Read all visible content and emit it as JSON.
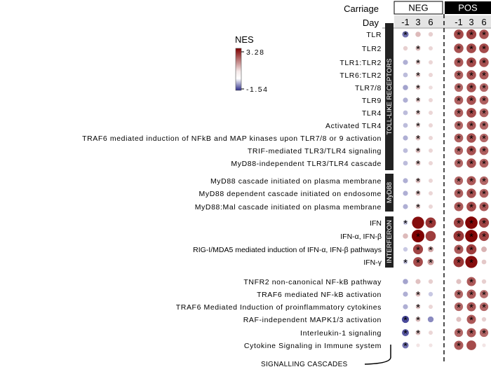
{
  "chart_data": {
    "type": "dot-heatmap",
    "title": "",
    "header": {
      "carriage_label": "Carriage",
      "day_label": "Day",
      "groups": [
        {
          "name": "NEG",
          "days": [
            "-1",
            "3",
            "6"
          ]
        },
        {
          "name": "POS",
          "days": [
            "-1",
            "3",
            "6"
          ]
        }
      ]
    },
    "legend": {
      "title": "NES",
      "max": "3.28",
      "min": "-1.54",
      "max_value": 3.28,
      "min_value": -1.54,
      "colors": {
        "high": "#7f0000",
        "mid": "#ffffff",
        "low": "#2d2d8a"
      },
      "placement": "top-left"
    },
    "sections": [
      {
        "label": "TOLL-LIKE RECEPTORS",
        "rows": [
          {
            "name": "TLR",
            "nes": [
              -1.0,
              0.6,
              0.3,
              2.2,
              2.3,
              2.1
            ],
            "sig": [
              1,
              0,
              0,
              1,
              1,
              1
            ]
          },
          {
            "name": "TLR2",
            "nes": [
              0.3,
              0.5,
              0.2,
              2.1,
              2.2,
              2.2
            ],
            "sig": [
              0,
              1,
              0,
              1,
              1,
              1
            ]
          },
          {
            "name": "TLR1:TLR2",
            "nes": [
              -0.5,
              0.4,
              0.2,
              2.0,
              2.2,
              2.1
            ],
            "sig": [
              0,
              1,
              0,
              1,
              1,
              1
            ]
          },
          {
            "name": "TLR6:TLR2",
            "nes": [
              -0.4,
              0.4,
              0.2,
              1.9,
              2.1,
              2.0
            ],
            "sig": [
              0,
              1,
              0,
              1,
              1,
              1
            ]
          },
          {
            "name": "TLR7/8",
            "nes": [
              -0.6,
              0.4,
              0.1,
              1.8,
              2.1,
              1.8
            ],
            "sig": [
              0,
              1,
              0,
              1,
              1,
              1
            ]
          },
          {
            "name": "TLR9",
            "nes": [
              -0.5,
              0.4,
              0.2,
              1.9,
              2.1,
              1.9
            ],
            "sig": [
              0,
              1,
              0,
              1,
              1,
              1
            ]
          },
          {
            "name": "TLR4",
            "nes": [
              -0.4,
              0.4,
              0.2,
              1.9,
              2.2,
              1.9
            ],
            "sig": [
              0,
              1,
              0,
              1,
              1,
              1
            ]
          },
          {
            "name": "Activated TLR4",
            "nes": [
              -0.4,
              0.3,
              0.2,
              1.8,
              2.0,
              1.8
            ],
            "sig": [
              0,
              1,
              0,
              1,
              1,
              1
            ]
          },
          {
            "name": "TRAF6 mediated induction of NFkB and MAP kinases upon TLR7/8 or 9 activation",
            "nes": [
              -0.5,
              0.5,
              0.2,
              1.9,
              2.1,
              1.8
            ],
            "sig": [
              0,
              1,
              0,
              1,
              1,
              1
            ]
          },
          {
            "name": "TRIF-mediated TLR3/TLR4 signaling",
            "nes": [
              -0.4,
              0.5,
              0.2,
              1.8,
              2.1,
              1.9
            ],
            "sig": [
              0,
              1,
              0,
              1,
              1,
              1
            ]
          },
          {
            "name": "MyD88-independent TLR3/TLR4 cascade",
            "nes": [
              -0.4,
              0.5,
              0.2,
              1.8,
              2.1,
              1.9
            ],
            "sig": [
              0,
              1,
              0,
              1,
              1,
              1
            ]
          }
        ]
      },
      {
        "label": "MyD88",
        "rows": [
          {
            "name": "MyD88 cascade initiated on plasma membrane",
            "nes": [
              -0.5,
              0.5,
              0.2,
              1.8,
              2.0,
              1.8
            ],
            "sig": [
              0,
              1,
              0,
              1,
              1,
              1
            ]
          },
          {
            "name": "MyD88 dependent cascade initiated on endosome",
            "nes": [
              -0.5,
              0.5,
              0.2,
              1.9,
              2.1,
              1.9
            ],
            "sig": [
              0,
              1,
              0,
              1,
              1,
              1
            ]
          },
          {
            "name": "MyD88:Mal cascade initiated on plasma membrane",
            "nes": [
              -0.5,
              0.4,
              0.2,
              2.0,
              2.2,
              2.0
            ],
            "sig": [
              0,
              1,
              0,
              1,
              1,
              1
            ]
          }
        ]
      },
      {
        "label": "INTERFERON",
        "rows": [
          {
            "name": "IFN",
            "nes": [
              -0.3,
              3.1,
              2.5,
              2.3,
              3.2,
              2.3
            ],
            "sig": [
              1,
              0,
              1,
              1,
              1,
              1
            ]
          },
          {
            "name": "IFN-α, IFN-β",
            "nes": [
              0.6,
              3.28,
              2.4,
              2.5,
              3.2,
              2.3
            ],
            "sig": [
              0,
              1,
              0,
              1,
              1,
              1
            ]
          },
          {
            "name": "RIG-I/MDA5 mediated induction of IFN-α, IFN-β pathways",
            "nes": [
              -0.3,
              2.3,
              0.8,
              2.0,
              2.4,
              0.7
            ],
            "sig": [
              0,
              1,
              1,
              1,
              1,
              0
            ]
          },
          {
            "name": "IFN-γ",
            "nes": [
              -0.3,
              2.2,
              1.0,
              2.5,
              3.1,
              0.4
            ],
            "sig": [
              1,
              1,
              1,
              1,
              1,
              0
            ]
          }
        ]
      },
      {
        "label": "SIGNALLING CASCADES",
        "rows": [
          {
            "name": "TNFR2 non-canonical NF-kB pathway",
            "nes": [
              -0.6,
              0.5,
              0.3,
              0.5,
              2.0,
              0.3
            ],
            "sig": [
              0,
              0,
              0,
              0,
              1,
              0
            ]
          },
          {
            "name": "TRAF6 mediated NF-kB activation",
            "nes": [
              -0.5,
              0.5,
              -0.3,
              1.8,
              2.0,
              1.7
            ],
            "sig": [
              0,
              1,
              0,
              1,
              1,
              1
            ]
          },
          {
            "name": "TRAF6 Mediated Induction of proinflammatory cytokines",
            "nes": [
              -0.5,
              0.4,
              0.2,
              1.8,
              2.0,
              1.8
            ],
            "sig": [
              0,
              1,
              0,
              1,
              1,
              1
            ]
          },
          {
            "name": "RAF-independent MAPK1/3 activation",
            "nes": [
              -1.3,
              0.5,
              -0.8,
              0.5,
              2.0,
              0.3
            ],
            "sig": [
              1,
              1,
              0,
              0,
              1,
              0
            ]
          },
          {
            "name": "Interleukin-1 signaling",
            "nes": [
              -1.2,
              0.5,
              0.2,
              1.8,
              2.0,
              1.8
            ],
            "sig": [
              1,
              1,
              0,
              1,
              1,
              1
            ]
          },
          {
            "name": "Cytokine Signaling in Immune system",
            "nes": [
              -1.0,
              0.0,
              0.0,
              2.0,
              2.2,
              0.0
            ],
            "sig": [
              1,
              0,
              0,
              1,
              0,
              0
            ]
          }
        ]
      }
    ]
  }
}
